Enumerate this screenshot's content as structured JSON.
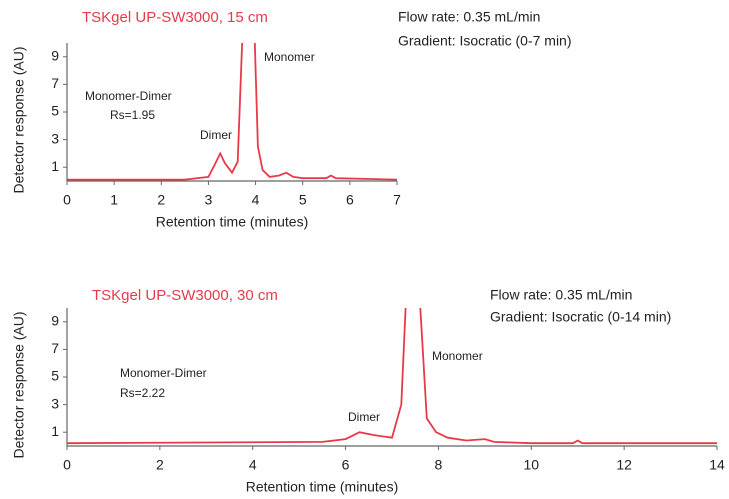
{
  "chart_data": [
    {
      "type": "line",
      "title": "TSKgel UP-SW3000, 15 cm",
      "annotations": [
        "Flow rate: 0.35 mL/min",
        "Gradient:  Isocratic (0-7 min)",
        "Monomer",
        "Monomer-Dimer",
        "Rs=1.95",
        "Dimer"
      ],
      "x_label": "Retention time (minutes)",
      "y_label": "Detector response (AU)",
      "xlim": [
        0,
        7
      ],
      "xticks": [
        0,
        1,
        2,
        3,
        4,
        5,
        6,
        7
      ],
      "ylim": [
        0,
        10
      ],
      "yticks": [
        1,
        3,
        5,
        7,
        9
      ],
      "series": [
        {
          "color": "#e8394a",
          "x": [
            0,
            2.5,
            3.0,
            3.15,
            3.25,
            3.35,
            3.5,
            3.62,
            3.72,
            3.85,
            3.98,
            4.05,
            4.15,
            4.3,
            4.5,
            4.65,
            4.8,
            5.0,
            5.5,
            5.6,
            5.7,
            7
          ],
          "values": [
            0.1,
            0.1,
            0.3,
            1.3,
            2.0,
            1.3,
            0.6,
            1.4,
            10.5,
            20,
            10.5,
            2.5,
            0.8,
            0.3,
            0.4,
            0.6,
            0.3,
            0.2,
            0.2,
            0.4,
            0.2,
            0.1
          ]
        }
      ]
    },
    {
      "type": "line",
      "title": "TSKgel UP-SW3000, 30 cm",
      "annotations": [
        "Flow rate: 0.35 mL/min",
        "Gradient:  Isocratic (0-14 min)",
        "Monomer",
        "Monomer-Dimer",
        "Rs=2.22",
        "Dimer"
      ],
      "x_label": "Retention time (minutes)",
      "y_label": "Detector response (AU)",
      "xlim": [
        0,
        14
      ],
      "xticks": [
        0,
        2,
        4,
        6,
        8,
        10,
        12,
        14
      ],
      "ylim": [
        0,
        10
      ],
      "yticks": [
        1,
        3,
        5,
        7,
        9
      ],
      "series": [
        {
          "color": "#e8394a",
          "x": [
            0,
            5.5,
            6.0,
            6.3,
            6.6,
            7.0,
            7.2,
            7.3,
            7.45,
            7.6,
            7.75,
            7.95,
            8.2,
            8.6,
            9.0,
            9.2,
            10.0,
            10.9,
            11.0,
            11.1,
            14
          ],
          "values": [
            0.2,
            0.3,
            0.5,
            1.0,
            0.8,
            0.6,
            3,
            10.5,
            20,
            10.5,
            2.0,
            1.0,
            0.6,
            0.4,
            0.5,
            0.3,
            0.2,
            0.2,
            0.4,
            0.2,
            0.2
          ]
        }
      ]
    }
  ]
}
